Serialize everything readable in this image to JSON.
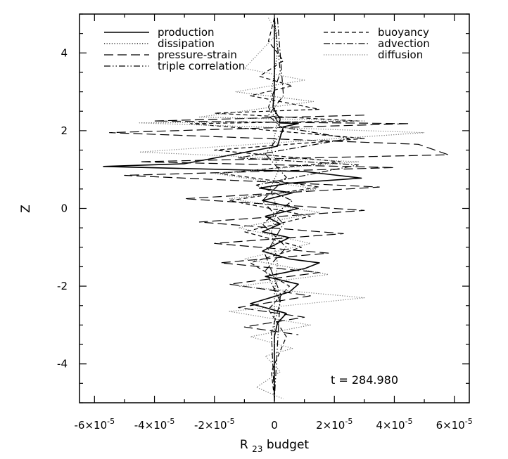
{
  "chart_data": {
    "type": "line",
    "title": "",
    "xlabel": {
      "main": "R",
      "sub": "23",
      "rest": " budget"
    },
    "ylabel": "Z",
    "xlim": [
      -6.5e-05,
      6.5e-05
    ],
    "ylim": [
      -5,
      5
    ],
    "x_ticks": [
      {
        "value": -6e-05,
        "mant": "-6",
        "exp": "-5"
      },
      {
        "value": -4e-05,
        "mant": "-4",
        "exp": "-5"
      },
      {
        "value": -2e-05,
        "mant": "-2",
        "exp": "-5"
      },
      {
        "value": 0,
        "mant": "0",
        "exp": ""
      },
      {
        "value": 2e-05,
        "mant": "2",
        "exp": "-5"
      },
      {
        "value": 4e-05,
        "mant": "4",
        "exp": "-5"
      },
      {
        "value": 6e-05,
        "mant": "6",
        "exp": "-5"
      }
    ],
    "y_ticks": [
      {
        "value": -4,
        "label": "-4"
      },
      {
        "value": -2,
        "label": "-2"
      },
      {
        "value": 0,
        "label": "0"
      },
      {
        "value": 2,
        "label": "2"
      },
      {
        "value": 4,
        "label": "4"
      }
    ],
    "grid": false,
    "legend_placement": "top",
    "annotation": "t = 284.980",
    "series": [
      {
        "name": "production",
        "style": "solid",
        "color": "#000000",
        "x": [
          0,
          0,
          -5e-07,
          1e-06,
          2e-06,
          1.5e-06,
          8e-06,
          3e-06,
          1e-06,
          -3e-05,
          -5.7e-05,
          1e-05,
          2.9e-05,
          5e-06,
          -5e-06,
          6e-06,
          -4e-06,
          8e-06,
          -3e-06,
          2e-06,
          -4e-06,
          5e-06,
          1e-06,
          -4e-06,
          5e-06,
          1.5e-05,
          1e-05,
          -3e-06,
          8e-06,
          5e-06,
          -8e-06,
          4e-06,
          1e-06,
          0,
          0,
          0,
          0
        ],
        "y": [
          4.9,
          3.0,
          2.6,
          2.4,
          2.3,
          2.2,
          2.18,
          2.1,
          1.6,
          1.15,
          1.08,
          0.95,
          0.78,
          0.65,
          0.52,
          0.4,
          0.2,
          0.0,
          -0.2,
          -0.4,
          -0.6,
          -0.75,
          -0.9,
          -1.1,
          -1.3,
          -1.4,
          -1.55,
          -1.75,
          -1.95,
          -2.15,
          -2.45,
          -2.7,
          -2.95,
          -3.3,
          -4.0,
          -4.5,
          -4.95
        ]
      },
      {
        "name": "dissipation",
        "style": "dotted",
        "color": "#000000",
        "x": [
          0,
          1e-06,
          -1e-06,
          1e-06,
          -1e-06,
          1.5e-06,
          -1.5e-06,
          1e-06,
          -1e-06,
          1e-06,
          0,
          0,
          0
        ],
        "y": [
          4.9,
          4.0,
          3.0,
          2.2,
          1.5,
          1.0,
          0.5,
          0.0,
          -0.6,
          -1.4,
          -2.2,
          -3.0,
          -4.9
        ]
      },
      {
        "name": "pressure-strain",
        "style": "longdash",
        "color": "#000000",
        "x": [
          3e-05,
          -4e-05,
          4.5e-05,
          -5.5e-05,
          4.8e-05,
          5.8e-05,
          -4.5e-05,
          4e-05,
          -5e-05,
          3.5e-05,
          -3e-05,
          3e-05,
          -2.5e-05,
          2.3e-05,
          -2e-05,
          1.8e-05,
          -1.8e-05,
          1.5e-05,
          -1.5e-05,
          1.2e-05,
          -1.2e-05,
          1e-05,
          -1e-05,
          8e-06
        ],
        "y": [
          2.4,
          2.25,
          2.18,
          1.95,
          1.65,
          1.38,
          1.2,
          1.05,
          0.85,
          0.55,
          0.25,
          -0.05,
          -0.35,
          -0.65,
          -0.9,
          -1.15,
          -1.4,
          -1.65,
          -1.95,
          -2.25,
          -2.55,
          -2.8,
          -3.05,
          -3.25
        ]
      },
      {
        "name": "triple correlation",
        "style": "dashdotdot",
        "color": "#000000",
        "x": [
          0,
          2e-06,
          -2e-06,
          3e-06,
          -3e-06,
          4e-06,
          -4e-06,
          3e-06,
          -3e-06,
          2e-06,
          0
        ],
        "y": [
          4.9,
          3.5,
          2.6,
          2.0,
          1.4,
          0.8,
          0.2,
          -0.4,
          -1.2,
          -2.2,
          -4.9
        ]
      },
      {
        "name": "buoyancy",
        "style": "dashed",
        "color": "#000000",
        "x": [
          0,
          -2e-06,
          3e-06,
          -5e-06,
          6e-06,
          -8e-06,
          1.5e-05,
          -2e-05,
          2.8e-05,
          -2.8e-05,
          3e-05,
          -2e-05,
          2.2e-05,
          -1.8e-05,
          1.5e-05,
          -1.5e-05,
          1.2e-05,
          -1e-05,
          9e-06,
          -8e-06,
          5e-06,
          -2e-06,
          4e-06,
          -1e-06,
          0
        ],
        "y": [
          4.9,
          4.3,
          3.8,
          3.4,
          3.15,
          2.9,
          2.55,
          2.45,
          2.25,
          2.18,
          1.8,
          1.5,
          1.2,
          0.9,
          0.55,
          0.2,
          -0.2,
          -0.6,
          -1.0,
          -1.4,
          -2.0,
          -2.6,
          -3.3,
          -4.2,
          -4.9
        ]
      },
      {
        "name": "advection",
        "style": "dashdot",
        "color": "#000000",
        "x": [
          1e-06,
          3e-06,
          -2e-06,
          2e-06,
          2.5e-05,
          -1.2e-05,
          2.8e-05,
          2e-05,
          -6e-06,
          6e-06,
          -4e-06,
          4e-06,
          -3e-06,
          2e-06,
          -1e-06,
          0
        ],
        "y": [
          4.9,
          2.9,
          2.4,
          2.1,
          1.8,
          1.3,
          1.12,
          1.0,
          0.6,
          0.2,
          -0.4,
          -1.0,
          -1.6,
          -2.4,
          -3.2,
          -4.9
        ]
      },
      {
        "name": "diffusion",
        "style": "dotted-gray",
        "color": "#777777",
        "x": [
          -2e-06,
          1e-06,
          -1e-05,
          1e-05,
          -1.3e-05,
          1.3e-05,
          -2.5e-05,
          3e-05,
          -4.5e-05,
          5e-05,
          -4.5e-05,
          2.8e-05,
          -2e-05,
          1.4e-05,
          -1.5e-05,
          1.5e-05,
          -1.2e-05,
          1.2e-05,
          -1e-05,
          1.8e-05,
          -1.2e-05,
          3e-05,
          -1.5e-05,
          1.2e-05,
          -8e-06,
          6e-06,
          -3e-06,
          2e-06,
          -6e-06,
          3e-06
        ],
        "y": [
          4.9,
          4.5,
          3.6,
          3.3,
          3.0,
          2.75,
          2.35,
          2.25,
          2.2,
          1.95,
          1.45,
          1.2,
          0.9,
          0.5,
          0.25,
          -0.1,
          -0.5,
          -0.9,
          -1.3,
          -1.7,
          -2.0,
          -2.3,
          -2.65,
          -3.0,
          -3.3,
          -3.6,
          -3.8,
          -4.2,
          -4.6,
          -4.9
        ]
      }
    ]
  }
}
